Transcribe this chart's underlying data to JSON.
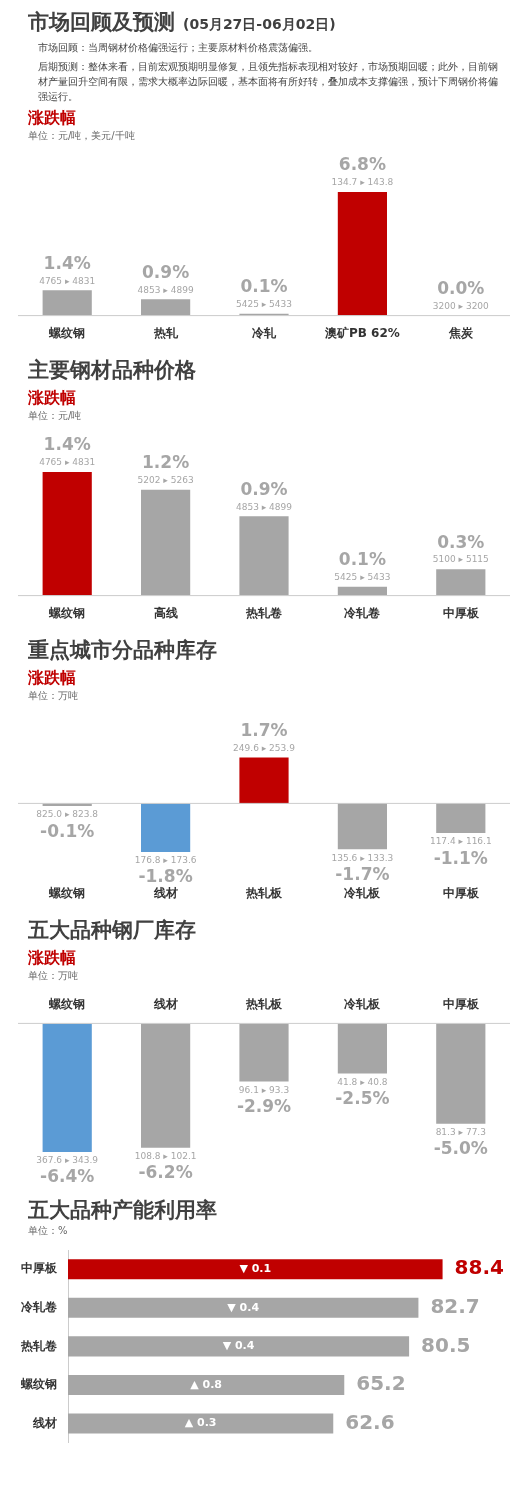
{
  "chart_data": [
    {
      "type": "bar",
      "title": "市场回顾及预测",
      "subtitle": "(05月27日-06月02日)",
      "ylabel": "涨跌幅",
      "categories": [
        "螺纹钢",
        "热轧",
        "冷轧",
        "澳矿PB 62%",
        "焦炭"
      ],
      "values": [
        1.4,
        0.9,
        0.1,
        6.8,
        0.0
      ],
      "colors": [
        "#a6a6a6",
        "#a6a6a6",
        "#a6a6a6",
        "#c00000",
        "#a6a6a6"
      ],
      "value_labels": [
        "1.4%",
        "0.9%",
        "0.1%",
        "6.8%",
        "0.0%"
      ],
      "tick_labels": "x",
      "annotations": [
        "市场回顾：当周钢材价格偏强运行；主要原材料价格震荡偏强。",
        "后期预测：整体来看，目前宏观预期明显修复，且领先指标表现相对较好，市场预期回暖；此外，目前钢材产量回升空间有限，需求大概率边际回暖，基本面将有所好转，叠加成本支撑偏强，预计下周钢价将偏强运行。",
        "单位：元/吨，美元/千吨",
        {
          "text": "4765 ▸ 4831",
          "x": "螺纹钢",
          "y": 1.4
        },
        {
          "text": "4853 ▸ 4899",
          "x": "热轧",
          "y": 0.9
        },
        {
          "text": "5425 ▸ 5433",
          "x": "冷轧",
          "y": 0.1
        },
        {
          "text": "134.7 ▸ 143.8",
          "x": "澳矿PB 62%",
          "y": 6.8
        },
        {
          "text": "3200 ▸ 3200",
          "x": "焦炭",
          "y": 0.0
        }
      ]
    },
    {
      "type": "bar",
      "title": "主要钢材品种价格",
      "ylabel": "涨跌幅",
      "categories": [
        "螺纹钢",
        "高线",
        "热轧卷",
        "冷轧卷",
        "中厚板"
      ],
      "values": [
        1.4,
        1.2,
        0.9,
        0.1,
        0.3
      ],
      "colors": [
        "#c00000",
        "#a6a6a6",
        "#a6a6a6",
        "#a6a6a6",
        "#a6a6a6"
      ],
      "value_labels": [
        "1.4%",
        "1.2%",
        "0.9%",
        "0.1%",
        "0.3%"
      ],
      "tick_labels": "x",
      "annotations": [
        "单位：元/吨",
        {
          "text": "4765 ▸ 4831",
          "x": "螺纹钢",
          "y": 1.4
        },
        {
          "text": "5202 ▸ 5263",
          "x": "高线",
          "y": 1.2
        },
        {
          "text": "4853 ▸ 4899",
          "x": "热轧卷",
          "y": 0.9
        },
        {
          "text": "5425 ▸ 5433",
          "x": "冷轧卷",
          "y": 0.1
        },
        {
          "text": "5100 ▸ 5115",
          "x": "中厚板",
          "y": 0.3
        }
      ]
    },
    {
      "type": "bar",
      "title": "重点城市分品种库存",
      "ylabel": "涨跌幅",
      "categories": [
        "螺纹钢",
        "线材",
        "热轧板",
        "冷轧板",
        "中厚板"
      ],
      "values": [
        -0.1,
        -1.8,
        1.7,
        -1.7,
        -1.1
      ],
      "colors": [
        "#a6a6a6",
        "#5b9bd5",
        "#c00000",
        "#a6a6a6",
        "#a6a6a6"
      ],
      "value_labels": [
        "-0.1%",
        "-1.8%",
        "1.7%",
        "-1.7%",
        "-1.1%"
      ],
      "tick_labels": "x",
      "annotations": [
        "单位：万吨",
        {
          "text": "825.0 ▸ 823.8",
          "x": "螺纹钢",
          "y": -0.1
        },
        {
          "text": "176.8 ▸ 173.6",
          "x": "线材",
          "y": -1.8
        },
        {
          "text": "249.6 ▸ 253.9",
          "x": "热轧板",
          "y": 1.7
        },
        {
          "text": "135.6 ▸ 133.3",
          "x": "冷轧板",
          "y": -1.7
        },
        {
          "text": "117.4 ▸ 116.1",
          "x": "中厚板",
          "y": -1.1
        }
      ]
    },
    {
      "type": "bar",
      "title": "五大品种钢厂库存",
      "ylabel": "涨跌幅",
      "categories": [
        "螺纹钢",
        "线材",
        "热轧板",
        "冷轧板",
        "中厚板"
      ],
      "values": [
        -6.4,
        -6.2,
        -2.9,
        -2.5,
        -5.0
      ],
      "colors": [
        "#5b9bd5",
        "#a6a6a6",
        "#a6a6a6",
        "#a6a6a6",
        "#a6a6a6"
      ],
      "value_labels": [
        "-6.4%",
        "-6.2%",
        "-2.9%",
        "-2.5%",
        "-5.0%"
      ],
      "tick_labels": "x",
      "annotations": [
        "单位：万吨",
        {
          "text": "367.6 ▸ 343.9",
          "x": "螺纹钢",
          "y": -6.4
        },
        {
          "text": "108.8 ▸ 102.1",
          "x": "线材",
          "y": -6.2
        },
        {
          "text": "96.1 ▸ 93.3",
          "x": "热轧板",
          "y": -2.9
        },
        {
          "text": "41.8 ▸ 40.8",
          "x": "冷轧板",
          "y": -2.5
        },
        {
          "text": "81.3 ▸ 77.3",
          "x": "中厚板",
          "y": -5.0
        }
      ]
    },
    {
      "type": "bar",
      "orientation": "horizontal",
      "title": "五大品种产能利用率",
      "categories": [
        "中厚板",
        "冷轧卷",
        "热轧卷",
        "螺纹钢",
        "线材"
      ],
      "values": [
        88.4,
        82.7,
        80.5,
        65.2,
        62.6
      ],
      "colors": [
        "#c00000",
        "#a6a6a6",
        "#a6a6a6",
        "#a6a6a6",
        "#a6a6a6"
      ],
      "data_labels": true,
      "tick_labels": "y",
      "annotations": [
        "单位：%",
        "▼ 0.1",
        "▼ 0.4",
        "▼ 0.4",
        "▲ 0.8",
        "▲ 0.3"
      ]
    }
  ]
}
